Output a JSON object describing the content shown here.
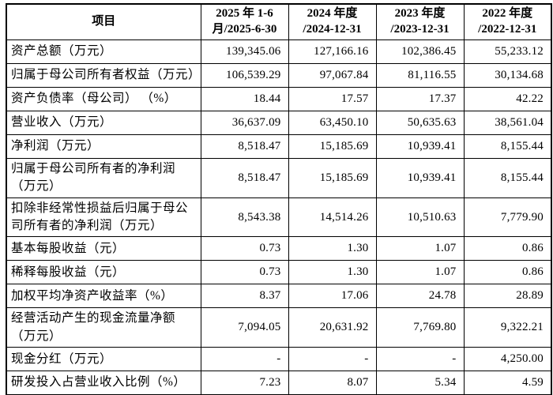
{
  "table": {
    "title_semantic": "主要财务指标表",
    "columns": [
      {
        "label": "项目"
      },
      {
        "label": "2025 年 1-6\n月/2025-6-30"
      },
      {
        "label": "2024 年度\n/2024-12-31"
      },
      {
        "label": "2023 年度\n/2023-12-31"
      },
      {
        "label": "2022 年度\n/2022-12-31"
      }
    ],
    "rows": [
      {
        "label": "资产总额（万元）",
        "values": [
          "139,345.06",
          "127,166.16",
          "102,386.45",
          "55,233.12"
        ]
      },
      {
        "label": "归属于母公司所有者权益（万元）",
        "values": [
          "106,539.29",
          "97,067.84",
          "81,116.55",
          "30,134.68"
        ]
      },
      {
        "label": "资产负债率（母公司） （%）",
        "values": [
          "18.44",
          "17.57",
          "17.37",
          "42.22"
        ]
      },
      {
        "label": "营业收入（万元）",
        "values": [
          "36,637.09",
          "63,450.10",
          "50,635.63",
          "38,561.04"
        ]
      },
      {
        "label": "净利润（万元）",
        "values": [
          "8,518.47",
          "15,185.69",
          "10,939.41",
          "8,155.44"
        ]
      },
      {
        "label": "归属于母公司所有者的净利润\n（万元）",
        "values": [
          "8,518.47",
          "15,185.69",
          "10,939.41",
          "8,155.44"
        ]
      },
      {
        "label": "扣除非经常性损益后归属于母公\n司所有者的净利润（万元）",
        "values": [
          "8,543.38",
          "14,514.26",
          "10,510.63",
          "7,779.90"
        ]
      },
      {
        "label": "基本每股收益（元）",
        "values": [
          "0.73",
          "1.30",
          "1.07",
          "0.86"
        ]
      },
      {
        "label": "稀释每股收益（元）",
        "values": [
          "0.73",
          "1.30",
          "1.07",
          "0.86"
        ]
      },
      {
        "label": "加权平均净资产收益率（%）",
        "values": [
          "8.37",
          "17.06",
          "24.78",
          "28.89"
        ]
      },
      {
        "label": "经营活动产生的现金流量净额\n（万元）",
        "values": [
          "7,094.05",
          "20,631.92",
          "7,769.80",
          "9,322.21"
        ]
      },
      {
        "label": "现金分红（万元）",
        "values": [
          "-",
          "-",
          "-",
          "4,250.00"
        ]
      },
      {
        "label": "研发投入占营业收入比例（%）",
        "values": [
          "7.23",
          "8.07",
          "5.34",
          "4.59"
        ]
      }
    ]
  }
}
